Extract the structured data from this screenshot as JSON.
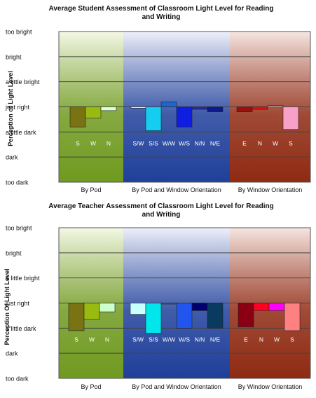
{
  "chart_data": [
    {
      "type": "bar",
      "title": "Average Student Assessment of Classroom Light Level for Reading and Writing",
      "ylabel": "Perception of Light Level",
      "y_ticks": [
        "too dark",
        "dark",
        "a little dark",
        "just right",
        "a little bright",
        "bright",
        "too bright"
      ],
      "y_tick_values": [
        -3,
        -2,
        -1,
        0,
        1,
        2,
        3
      ],
      "ylim": [
        -3,
        3
      ],
      "grid": true,
      "groups": [
        {
          "label": "By Pod",
          "background": [
            "#6f9a1f",
            "#f4f8e6"
          ],
          "bars": [
            {
              "label": "S",
              "value": -0.8,
              "color": "#7a7313"
            },
            {
              "label": "W",
              "value": -0.45,
              "color": "#99bb11"
            },
            {
              "label": "N",
              "value": -0.15,
              "color": "#d9ffd2"
            }
          ]
        },
        {
          "label": "By Pod and Window Orientation",
          "background": [
            "#1f3f9a",
            "#eef0fa"
          ],
          "bars": [
            {
              "label": "S/W",
              "value": -0.05,
              "color": "#c9ffff"
            },
            {
              "label": "S/S",
              "value": -0.95,
              "color": "#14cdf0"
            },
            {
              "label": "W/W",
              "value": 0.2,
              "color": "#1f66cc"
            },
            {
              "label": "W/S",
              "value": -0.8,
              "color": "#0f1ee0"
            },
            {
              "label": "N/N",
              "value": -0.1,
              "color": "#2a2a9a"
            },
            {
              "label": "N/E",
              "value": -0.2,
              "color": "#0f1a8a"
            }
          ]
        },
        {
          "label": "By Window Orientation",
          "background": [
            "#8f2a12",
            "#f6e6e2"
          ],
          "bars": [
            {
              "label": "E",
              "value": -0.2,
              "color": "#9c0f0f"
            },
            {
              "label": "N",
              "value": -0.1,
              "color": "#e01010"
            },
            {
              "label": "W",
              "value": 0.05,
              "color": "#f4b8b8"
            },
            {
              "label": "S",
              "value": -0.9,
              "color": "#f7a0c8"
            }
          ]
        }
      ]
    },
    {
      "type": "bar",
      "title": "Average Teacher Assessment of Classroom Light Level for Reading and Writing",
      "ylabel": "Perception Of Light Level",
      "y_ticks": [
        "too dark",
        "dark",
        "a little dark",
        "just right",
        "a little bright",
        "bright",
        "too bright"
      ],
      "y_tick_values": [
        -3,
        -2,
        -1,
        0,
        1,
        2,
        3
      ],
      "ylim": [
        -3,
        3
      ],
      "grid": true,
      "groups": [
        {
          "label": "By Pod",
          "background": [
            "#6f9a1f",
            "#f4f8e6"
          ],
          "bars": [
            {
              "label": "S",
              "value": -1.1,
              "color": "#7a7313"
            },
            {
              "label": "W",
              "value": -0.65,
              "color": "#99bb11"
            },
            {
              "label": "N",
              "value": -0.35,
              "color": "#ccffcc"
            }
          ]
        },
        {
          "label": "By Pod and Window Orientation",
          "background": [
            "#1f3f9a",
            "#eef0fa"
          ],
          "bars": [
            {
              "label": "S/W",
              "value": -0.45,
              "color": "#c9ffff"
            },
            {
              "label": "S/S",
              "value": -1.2,
              "color": "#00e6ea"
            },
            {
              "label": "W/W",
              "value": 0,
              "color": "#1f66cc"
            },
            {
              "label": "W/S",
              "value": -1.0,
              "color": "#2255ee"
            },
            {
              "label": "N/N",
              "value": -0.3,
              "color": "#00006e"
            },
            {
              "label": "N/E",
              "value": -1.0,
              "color": "#0b3a60"
            }
          ]
        },
        {
          "label": "By Window Orientation",
          "background": [
            "#8f2a12",
            "#f6e6e2"
          ],
          "bars": [
            {
              "label": "E",
              "value": -0.95,
              "color": "#8a0012"
            },
            {
              "label": "N",
              "value": -0.3,
              "color": "#ff0022"
            },
            {
              "label": "W",
              "value": -0.3,
              "color": "#ff00ff"
            },
            {
              "label": "S",
              "value": -1.1,
              "color": "#ff8080"
            }
          ]
        }
      ]
    }
  ]
}
